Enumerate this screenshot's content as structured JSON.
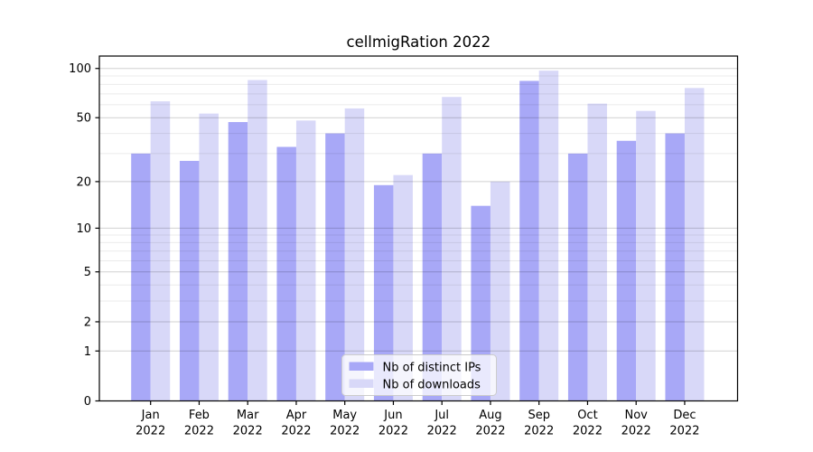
{
  "chart_data": {
    "type": "bar",
    "title": "cellmigRation 2022",
    "categories": [
      "Jan",
      "Feb",
      "Mar",
      "Apr",
      "May",
      "Jun",
      "Jul",
      "Aug",
      "Sep",
      "Oct",
      "Nov",
      "Dec"
    ],
    "category_year": "2022",
    "series": [
      {
        "name": "Nb of distinct IPs",
        "key": "distinct-ips",
        "color": "#a8a8f7",
        "values": [
          30,
          27,
          47,
          33,
          40,
          19,
          30,
          14,
          84,
          30,
          36,
          40
        ]
      },
      {
        "name": "Nb of downloads",
        "key": "downloads",
        "color": "#d8d8f8",
        "values": [
          63,
          53,
          85,
          48,
          57,
          22,
          67,
          20,
          97,
          61,
          55,
          76
        ]
      }
    ],
    "yscale": "log1p",
    "ylim": [
      0,
      119
    ],
    "yticks": [
      0,
      1,
      2,
      5,
      10,
      20,
      50,
      100
    ],
    "yticks_minor": [
      3,
      4,
      6,
      7,
      8,
      9,
      30,
      40,
      60,
      70,
      80,
      90
    ],
    "grid": true,
    "grid_on_top": true,
    "legend_position": "lower center",
    "xlabel": "",
    "ylabel": ""
  },
  "colors": {
    "background": "#ffffff",
    "axis": "#000000",
    "grid_major": "rgba(0,0,0,0.18)",
    "grid_minor": "rgba(0,0,0,0.08)",
    "legend_bg": "rgba(255,255,255,0.75)",
    "legend_border": "#cccccc",
    "text": "#000000"
  }
}
